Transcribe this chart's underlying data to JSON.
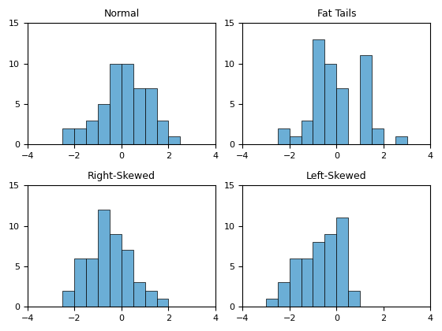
{
  "plots": [
    {
      "title": "Normal",
      "bin_edges": [
        -4,
        -3.5,
        -3,
        -2.5,
        -2,
        -1.5,
        -1,
        -0.5,
        0,
        0.5,
        1,
        1.5,
        2,
        2.5,
        3,
        3.5,
        4
      ],
      "heights": [
        0,
        0,
        0,
        2,
        2,
        3,
        5,
        10,
        10,
        7,
        7,
        3,
        1,
        0,
        0,
        0
      ]
    },
    {
      "title": "Fat Tails",
      "bin_edges": [
        -4,
        -3.5,
        -3,
        -2.5,
        -2,
        -1.5,
        -1,
        -0.5,
        0,
        0.5,
        1,
        1.5,
        2,
        2.5,
        3,
        3.5,
        4
      ],
      "heights": [
        0,
        0,
        0,
        2,
        1,
        3,
        13,
        10,
        7,
        0,
        11,
        2,
        0,
        1,
        0,
        0
      ]
    },
    {
      "title": "Right-Skewed",
      "bin_edges": [
        -4,
        -3.5,
        -3,
        -2.5,
        -2,
        -1.5,
        -1,
        -0.5,
        0,
        0.5,
        1,
        1.5,
        2,
        2.5,
        3,
        3.5,
        4
      ],
      "heights": [
        0,
        0,
        0,
        2,
        6,
        6,
        12,
        9,
        7,
        3,
        2,
        1,
        0,
        0,
        0,
        0
      ]
    },
    {
      "title": "Left-Skewed",
      "bin_edges": [
        -4,
        -3.5,
        -3,
        -2.5,
        -2,
        -1.5,
        -1,
        -0.5,
        0,
        0.5,
        1,
        1.5,
        2,
        2.5,
        3,
        3.5,
        4
      ],
      "heights": [
        0,
        0,
        1,
        3,
        6,
        6,
        8,
        9,
        11,
        2,
        0,
        0,
        0,
        0,
        0,
        0
      ]
    }
  ],
  "bar_color": "#6BAED6",
  "bar_edgecolor": "#000000",
  "bar_linewidth": 0.5,
  "xlim": [
    -4,
    4
  ],
  "ylim": [
    0,
    15
  ],
  "xticks": [
    -4,
    -2,
    0,
    2,
    4
  ],
  "yticks": [
    0,
    5,
    10,
    15
  ],
  "title_fontsize": 9,
  "title_fontweight": "normal",
  "tick_labelsize": 8,
  "figsize": [
    5.6,
    4.2
  ],
  "dpi": 100
}
